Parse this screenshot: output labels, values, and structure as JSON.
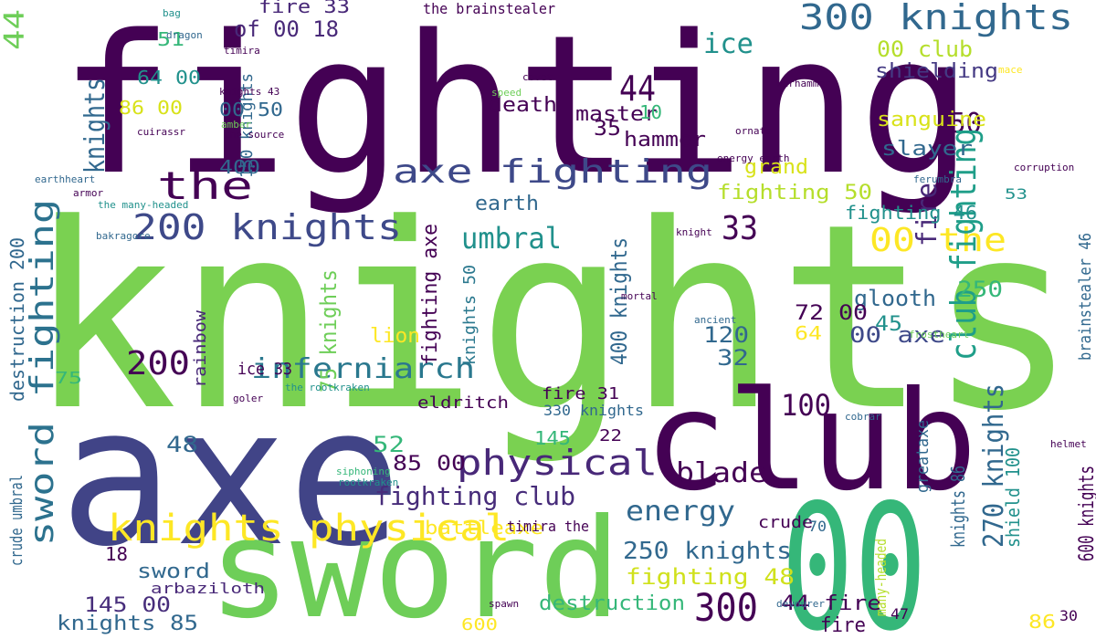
{
  "chart_data": {
    "type": "wordcloud",
    "words": [
      {
        "text": "fighting",
        "color": "#440154"
      },
      {
        "text": "knights",
        "color": "#7ad151"
      },
      {
        "text": "axe",
        "color": "#414487"
      },
      {
        "text": "club",
        "color": "#440154"
      },
      {
        "text": "sword",
        "color": "#6ece58"
      },
      {
        "text": "00",
        "color": "#35b779"
      },
      {
        "text": "300 knights",
        "color": "#31688e"
      },
      {
        "text": "the",
        "color": "#440154"
      },
      {
        "text": "axe fighting",
        "color": "#3e4989"
      },
      {
        "text": "200 knights",
        "color": "#3e4989"
      },
      {
        "text": "sword fighting",
        "color": "#2c728e"
      },
      {
        "text": "knights physical",
        "color": "#fde725"
      },
      {
        "text": "inferniarch",
        "color": "#2a788e"
      },
      {
        "text": "physical",
        "color": "#482878"
      },
      {
        "text": "umbral",
        "color": "#21918c"
      },
      {
        "text": "energy",
        "color": "#31688e"
      },
      {
        "text": "blade",
        "color": "#440154"
      },
      {
        "text": "fighting club",
        "color": "#472c7a"
      },
      {
        "text": "300",
        "color": "#440154"
      },
      {
        "text": "200",
        "color": "#440154"
      },
      {
        "text": "100",
        "color": "#440154"
      },
      {
        "text": "33",
        "color": "#440154"
      },
      {
        "text": "44",
        "color": "#440154"
      },
      {
        "text": "50",
        "color": "#440154"
      },
      {
        "text": "00 the",
        "color": "#fde725"
      },
      {
        "text": "club fighting",
        "color": "#1f9e89"
      },
      {
        "text": "fire",
        "color": "#482878"
      },
      {
        "text": "ice",
        "color": "#21918c"
      },
      {
        "text": "00 club",
        "color": "#b5de2b"
      },
      {
        "text": "shielding",
        "color": "#443983"
      },
      {
        "text": "sanguine",
        "color": "#d8e219"
      },
      {
        "text": "slayer",
        "color": "#31688e"
      },
      {
        "text": "grand",
        "color": "#d8e219"
      },
      {
        "text": "fighting 50",
        "color": "#b5de2b"
      },
      {
        "text": "fighting 46",
        "color": "#21918c"
      },
      {
        "text": "fighting 48",
        "color": "#d0e11c"
      },
      {
        "text": "250 knights",
        "color": "#31688e"
      },
      {
        "text": "270 knights",
        "color": "#31688e"
      },
      {
        "text": "glooth",
        "color": "#31688e"
      },
      {
        "text": "00 axe",
        "color": "#3e4989"
      },
      {
        "text": "250",
        "color": "#35b779"
      },
      {
        "text": "120",
        "color": "#31688e"
      },
      {
        "text": "32",
        "color": "#31688e"
      },
      {
        "text": "45",
        "color": "#21918c"
      },
      {
        "text": "72 00",
        "color": "#440154"
      },
      {
        "text": "64",
        "color": "#fde725"
      },
      {
        "text": "lion",
        "color": "#fde725"
      },
      {
        "text": "earth",
        "color": "#31688e"
      },
      {
        "text": "death",
        "color": "#440154"
      },
      {
        "text": "master",
        "color": "#440154"
      },
      {
        "text": "hammer",
        "color": "#440154"
      },
      {
        "text": "the brainstealer",
        "color": "#440154"
      },
      {
        "text": "fire 33",
        "color": "#482878"
      },
      {
        "text": "of 00 18",
        "color": "#482878"
      },
      {
        "text": "51",
        "color": "#35b779"
      },
      {
        "text": "64 00",
        "color": "#21918c"
      },
      {
        "text": "86 00",
        "color": "#d8e219"
      },
      {
        "text": "00 50",
        "color": "#31688e"
      },
      {
        "text": "400",
        "color": "#31688e"
      },
      {
        "text": "destruction",
        "color": "#35b779"
      },
      {
        "text": "44 fire",
        "color": "#440154"
      },
      {
        "text": "145 00",
        "color": "#472d7b"
      },
      {
        "text": "knights 85",
        "color": "#31688e"
      },
      {
        "text": "arbaziloth",
        "color": "#482878"
      },
      {
        "text": "sword",
        "color": "#31688e"
      },
      {
        "text": "eldritch",
        "color": "#440154"
      },
      {
        "text": "fire 31",
        "color": "#440154"
      },
      {
        "text": "330 knights",
        "color": "#31688e"
      },
      {
        "text": "145",
        "color": "#35b779"
      },
      {
        "text": "22",
        "color": "#440154"
      },
      {
        "text": "52",
        "color": "#35b779"
      },
      {
        "text": "85 00",
        "color": "#440154"
      },
      {
        "text": "battleaxe",
        "color": "#fde725"
      },
      {
        "text": "timira the",
        "color": "#440154"
      },
      {
        "text": "crude",
        "color": "#440154"
      },
      {
        "text": "48",
        "color": "#31688e"
      },
      {
        "text": "75",
        "color": "#35b779"
      },
      {
        "text": "rainbow",
        "color": "#482878"
      },
      {
        "text": "ice 33",
        "color": "#440154"
      },
      {
        "text": "knights 50",
        "color": "#2a788e"
      },
      {
        "text": "fighting axe",
        "color": "#440154"
      },
      {
        "text": "400 knights",
        "color": "#31688e"
      },
      {
        "text": "150 knights",
        "color": "#31688e"
      },
      {
        "text": "knights",
        "color": "#31688e"
      },
      {
        "text": "35",
        "color": "#440154"
      },
      {
        "text": "10",
        "color": "#35b779"
      },
      {
        "text": "75 knights",
        "color": "#6ece58"
      },
      {
        "text": "shield 100",
        "color": "#21918c"
      },
      {
        "text": "brainstealer 46",
        "color": "#31688e"
      },
      {
        "text": "600 knights",
        "color": "#440154"
      },
      {
        "text": "greataxe",
        "color": "#31688e"
      },
      {
        "text": "knights 86",
        "color": "#31688e"
      },
      {
        "text": "many-headed",
        "color": "#b5de2b"
      },
      {
        "text": "44",
        "color": "#6ece58"
      },
      {
        "text": "destruction 200",
        "color": "#31688e"
      },
      {
        "text": "crude umbral",
        "color": "#31688e"
      },
      {
        "text": "86",
        "color": "#fde725"
      },
      {
        "text": "47",
        "color": "#440154"
      },
      {
        "text": "600",
        "color": "#fde725"
      },
      {
        "text": "18",
        "color": "#440154"
      },
      {
        "text": "70",
        "color": "#31688e"
      },
      {
        "text": "30",
        "color": "#440154"
      },
      {
        "text": "53",
        "color": "#21918c"
      },
      {
        "text": "fire",
        "color": "#440154"
      },
      {
        "text": "dragon",
        "color": "#31688e"
      },
      {
        "text": "bag",
        "color": "#21918c"
      },
      {
        "text": "mace",
        "color": "#fde725"
      },
      {
        "text": "helmet",
        "color": "#440154"
      },
      {
        "text": "spawn",
        "color": "#440154"
      },
      {
        "text": "devourer",
        "color": "#31688e"
      },
      {
        "text": "rootkraken",
        "color": "#21918c"
      },
      {
        "text": "siphoning",
        "color": "#35b779"
      },
      {
        "text": "cobrar",
        "color": "#31688e"
      },
      {
        "text": "speed",
        "color": "#6ece58"
      },
      {
        "text": "armor",
        "color": "#440154"
      },
      {
        "text": "earthheart",
        "color": "#31688e"
      },
      {
        "text": "the rootkraken",
        "color": "#21918c"
      },
      {
        "text": "goler",
        "color": "#440154"
      },
      {
        "text": "warhammer",
        "color": "#440154"
      },
      {
        "text": "corruption",
        "color": "#440154"
      },
      {
        "text": "frostheart",
        "color": "#6ece58"
      },
      {
        "text": "covet",
        "color": "#440154"
      },
      {
        "text": "amber",
        "color": "#6ece58"
      },
      {
        "text": "the source",
        "color": "#440154"
      },
      {
        "text": "cuirassr",
        "color": "#440154"
      },
      {
        "text": "timira",
        "color": "#440154"
      },
      {
        "text": "knights 43",
        "color": "#440154"
      },
      {
        "text": "ornate",
        "color": "#440154"
      },
      {
        "text": "energy earth",
        "color": "#440154"
      },
      {
        "text": "ancient",
        "color": "#31688e"
      },
      {
        "text": "mortal",
        "color": "#440154"
      },
      {
        "text": "knight",
        "color": "#440154"
      },
      {
        "text": "ferumbra",
        "color": "#31688e"
      },
      {
        "text": "the many-headed",
        "color": "#21918c"
      },
      {
        "text": "bakragore",
        "color": "#31688e"
      }
    ]
  }
}
